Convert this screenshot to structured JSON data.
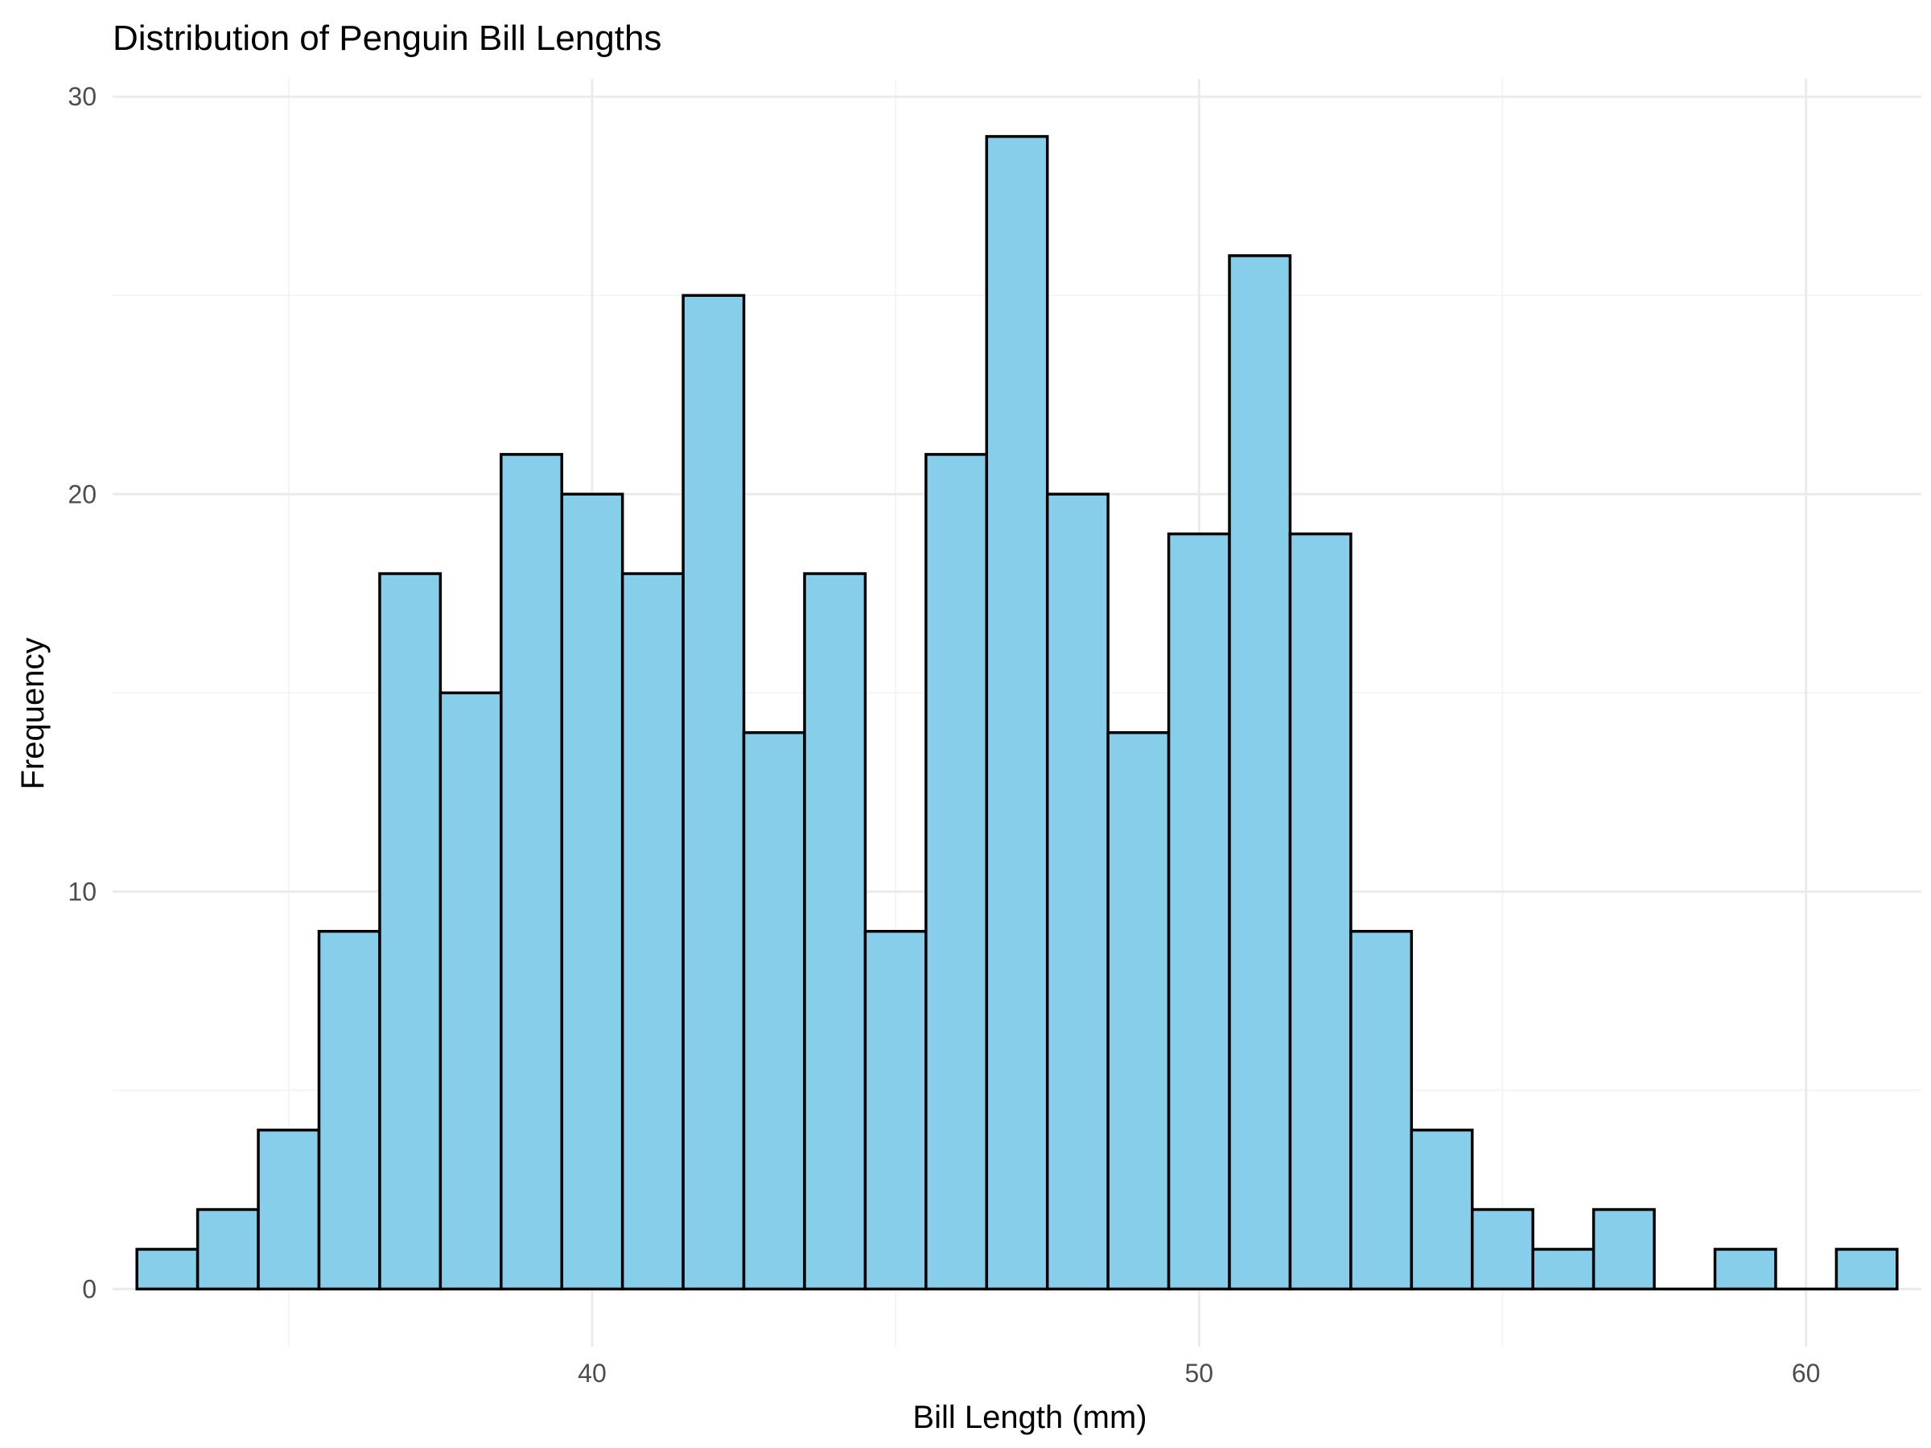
{
  "chart_data": {
    "type": "bar",
    "title": "Distribution of Penguin Bill Lengths",
    "xlabel": "Bill Length (mm)",
    "ylabel": "Frequency",
    "xlim": [
      32.1,
      61.9
    ],
    "ylim": [
      -1.45,
      30.45
    ],
    "x_major_ticks": [
      40,
      50,
      60
    ],
    "x_minor_ticks": [
      35,
      45,
      55
    ],
    "y_major_ticks": [
      0,
      10,
      20,
      30
    ],
    "y_minor_ticks": [
      5,
      15,
      25
    ],
    "grid": true,
    "bin_width": 1,
    "bins": [
      {
        "x0": 32.5,
        "x1": 33.5,
        "value": 1
      },
      {
        "x0": 33.5,
        "x1": 34.5,
        "value": 2
      },
      {
        "x0": 34.5,
        "x1": 35.5,
        "value": 4
      },
      {
        "x0": 35.5,
        "x1": 36.5,
        "value": 9
      },
      {
        "x0": 36.5,
        "x1": 37.5,
        "value": 18
      },
      {
        "x0": 37.5,
        "x1": 38.5,
        "value": 15
      },
      {
        "x0": 38.5,
        "x1": 39.5,
        "value": 21
      },
      {
        "x0": 39.5,
        "x1": 40.5,
        "value": 20
      },
      {
        "x0": 40.5,
        "x1": 41.5,
        "value": 18
      },
      {
        "x0": 41.5,
        "x1": 42.5,
        "value": 25
      },
      {
        "x0": 42.5,
        "x1": 43.5,
        "value": 14
      },
      {
        "x0": 43.5,
        "x1": 44.5,
        "value": 18
      },
      {
        "x0": 44.5,
        "x1": 45.5,
        "value": 9
      },
      {
        "x0": 45.5,
        "x1": 46.5,
        "value": 21
      },
      {
        "x0": 46.5,
        "x1": 47.5,
        "value": 29
      },
      {
        "x0": 47.5,
        "x1": 48.5,
        "value": 20
      },
      {
        "x0": 48.5,
        "x1": 49.5,
        "value": 14
      },
      {
        "x0": 49.5,
        "x1": 50.5,
        "value": 19
      },
      {
        "x0": 50.5,
        "x1": 51.5,
        "value": 26
      },
      {
        "x0": 51.5,
        "x1": 52.5,
        "value": 19
      },
      {
        "x0": 52.5,
        "x1": 53.5,
        "value": 9
      },
      {
        "x0": 53.5,
        "x1": 54.5,
        "value": 4
      },
      {
        "x0": 54.5,
        "x1": 55.5,
        "value": 2
      },
      {
        "x0": 55.5,
        "x1": 56.5,
        "value": 1
      },
      {
        "x0": 56.5,
        "x1": 57.5,
        "value": 2
      },
      {
        "x0": 57.5,
        "x1": 58.5,
        "value": 0
      },
      {
        "x0": 58.5,
        "x1": 59.5,
        "value": 1
      },
      {
        "x0": 59.5,
        "x1": 60.5,
        "value": 0
      },
      {
        "x0": 60.5,
        "x1": 61.5,
        "value": 1
      }
    ],
    "colors": {
      "bar_fill": "#87ceeb",
      "bar_outline": "#000000",
      "grid": "#ebebeb",
      "background": "#ffffff"
    }
  }
}
